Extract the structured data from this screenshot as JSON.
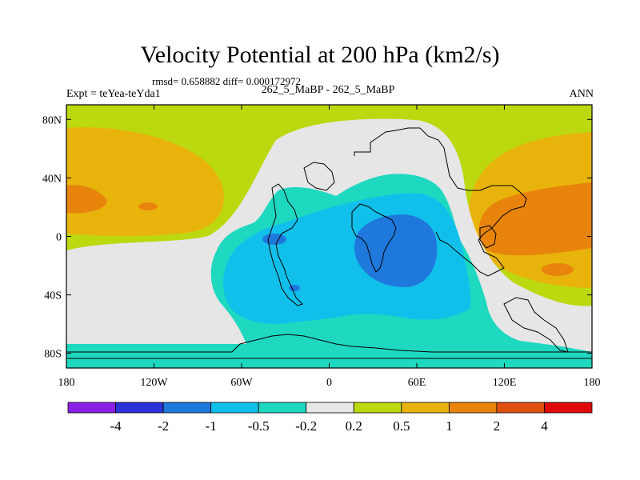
{
  "title": "Velocity Potential at 200 hPa (km2/s)",
  "stats_line": "rmsd= 0.658882 diff= 0.000172972",
  "expt_label": "Expt = teYea-teYda1",
  "case_label": "262_5_MaBP - 262_5_MaBP",
  "season": "ANN",
  "map": {
    "y_ticks": [
      {
        "label": "80N",
        "lat": 80
      },
      {
        "label": "40N",
        "lat": 40
      },
      {
        "label": "0",
        "lat": 0
      },
      {
        "label": "40S",
        "lat": -40
      },
      {
        "label": "80S",
        "lat": -80
      }
    ],
    "x_ticks": [
      {
        "label": "180",
        "lon": -180
      },
      {
        "label": "120W",
        "lon": -120
      },
      {
        "label": "60W",
        "lon": -60
      },
      {
        "label": "0",
        "lon": 0
      },
      {
        "label": "60E",
        "lon": 60
      },
      {
        "label": "120E",
        "lon": 120
      },
      {
        "label": "180",
        "lon": 180
      }
    ]
  },
  "colorbar": {
    "colors": [
      "#8a1ee6",
      "#2b32d8",
      "#1f78dc",
      "#11c0ea",
      "#1ed8c0",
      "#e6e6e6",
      "#bcd80e",
      "#e8b40c",
      "#e8840c",
      "#e05010",
      "#e00a0a"
    ],
    "labels": [
      "-4",
      "-2",
      "-1",
      "-0.5",
      "-0.2",
      "0.2",
      "0.5",
      "1",
      "2",
      "4"
    ]
  }
}
